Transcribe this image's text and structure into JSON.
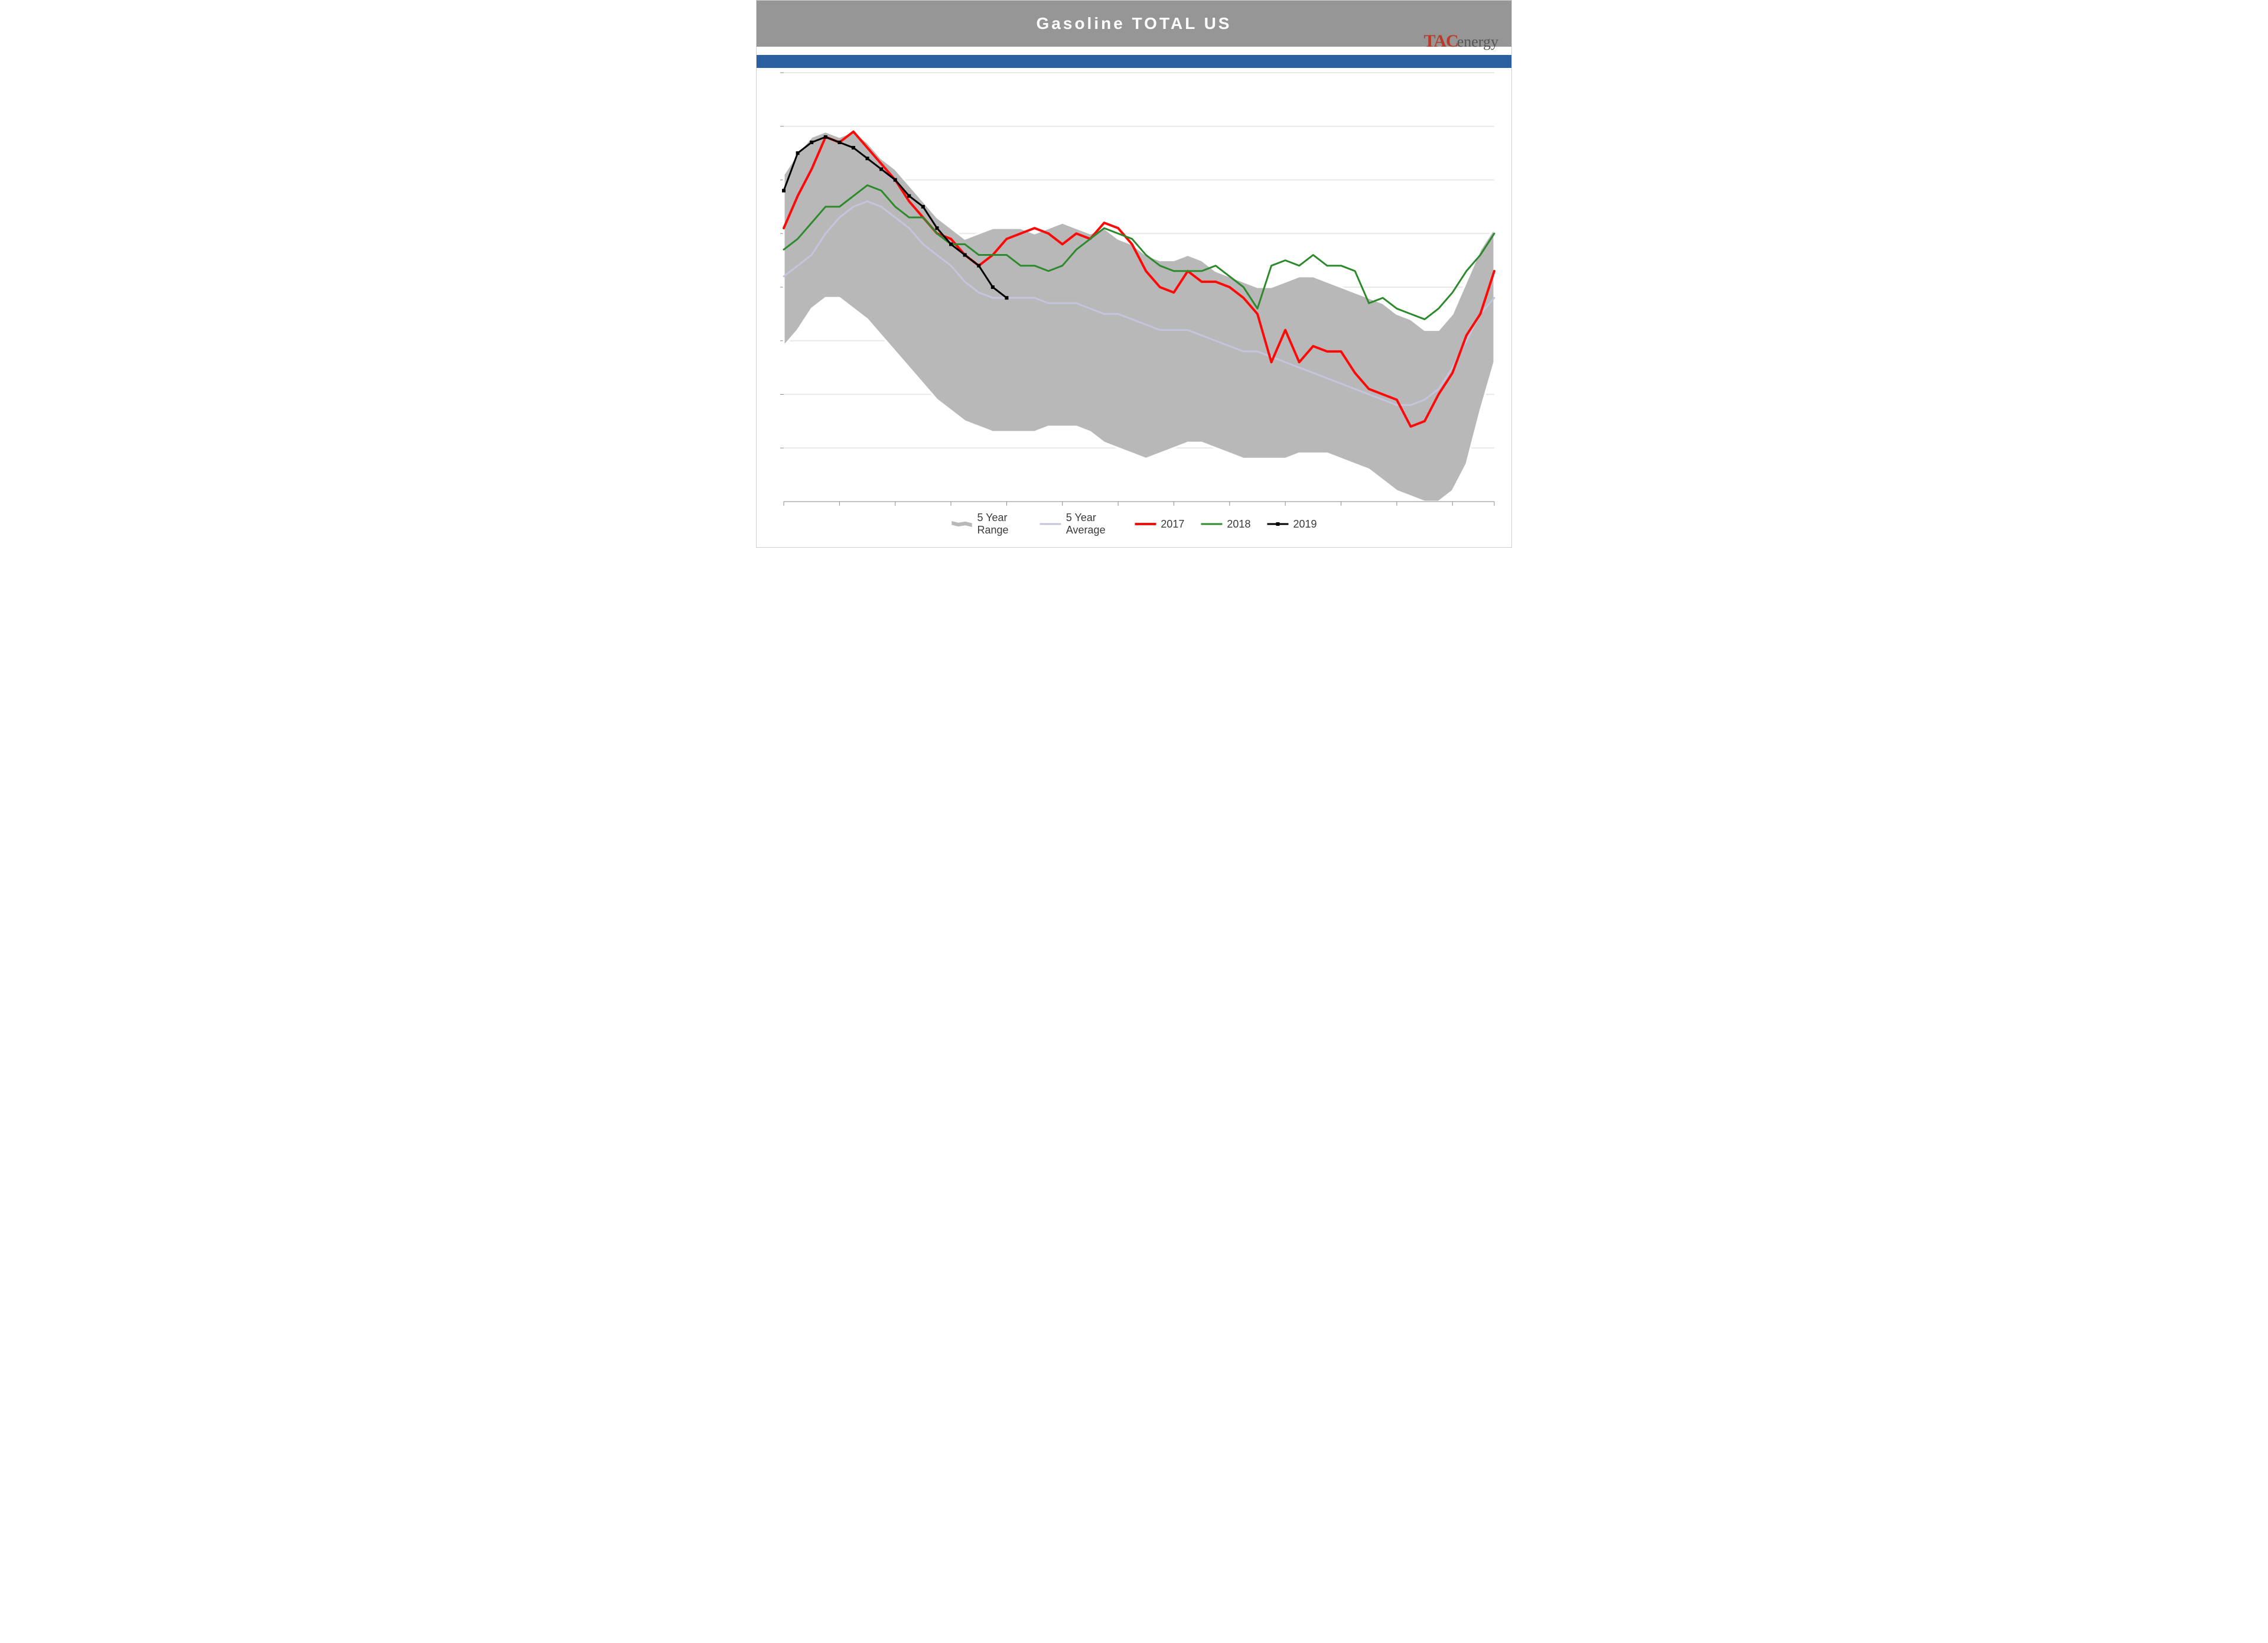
{
  "chart": {
    "type": "line-area",
    "title": "Gasoline TOTAL US",
    "title_fontsize": 28,
    "title_color": "#ffffff",
    "title_band_color": "#969696",
    "blue_band_color": "#2a5fa0",
    "background_color": "#ffffff",
    "chart_border_color": "#d0d0d0",
    "plot_background": "#ffffff",
    "grid_color": "#e8e8e8",
    "grid_line_width": 2,
    "ylim": [
      190,
      270
    ],
    "ytick_step": 10,
    "yticks": [
      190,
      200,
      210,
      220,
      230,
      240,
      250,
      260,
      270
    ],
    "xlim": [
      1,
      52
    ],
    "xticks": [
      1,
      5,
      9,
      13,
      17,
      21,
      25,
      29,
      33,
      37,
      41,
      45,
      49,
      52
    ],
    "x_axis_shows_tick_marks_only": true,
    "axis_tick_color": "#8a8a8a",
    "axis_baseline_color": "#8a8a8a",
    "weeks": [
      1,
      2,
      3,
      4,
      5,
      6,
      7,
      8,
      9,
      10,
      11,
      12,
      13,
      14,
      15,
      16,
      17,
      18,
      19,
      20,
      21,
      22,
      23,
      24,
      25,
      26,
      27,
      28,
      29,
      30,
      31,
      32,
      33,
      34,
      35,
      36,
      37,
      38,
      39,
      40,
      41,
      42,
      43,
      44,
      45,
      46,
      47,
      48,
      49,
      50,
      51,
      52
    ],
    "range_upper": [
      251,
      255,
      258,
      259,
      258,
      259,
      257,
      254,
      252,
      249,
      246,
      243,
      241,
      239,
      240,
      241,
      241,
      241,
      240,
      241,
      242,
      241,
      240,
      241,
      239,
      238,
      236,
      235,
      235,
      236,
      235,
      233,
      232,
      231,
      230,
      230,
      231,
      232,
      232,
      231,
      230,
      229,
      228,
      227,
      225,
      224,
      222,
      222,
      225,
      231,
      237,
      241
    ],
    "range_lower": [
      219,
      222,
      226,
      228,
      228,
      226,
      224,
      221,
      218,
      215,
      212,
      209,
      207,
      205,
      204,
      203,
      203,
      203,
      203,
      204,
      204,
      204,
      203,
      201,
      200,
      199,
      198,
      199,
      200,
      201,
      201,
      200,
      199,
      198,
      198,
      198,
      198,
      199,
      199,
      199,
      198,
      197,
      196,
      194,
      192,
      191,
      190,
      190,
      192,
      197,
      207,
      216
    ],
    "avg": [
      232,
      234,
      236,
      240,
      243,
      245,
      246,
      245,
      243,
      241,
      238,
      236,
      234,
      231,
      229,
      228,
      228,
      228,
      228,
      227,
      227,
      227,
      226,
      225,
      225,
      224,
      223,
      222,
      222,
      222,
      221,
      220,
      219,
      218,
      218,
      217,
      216,
      215,
      214,
      213,
      212,
      211,
      210,
      209,
      208,
      208,
      209,
      211,
      215,
      220,
      225,
      228
    ],
    "s2017": [
      241,
      247,
      252,
      258,
      257,
      259,
      256,
      253,
      250,
      246,
      243,
      240,
      239,
      236,
      234,
      236,
      239,
      240,
      241,
      240,
      238,
      240,
      239,
      242,
      241,
      238,
      233,
      230,
      229,
      233,
      231,
      231,
      230,
      228,
      225,
      216,
      222,
      216,
      219,
      218,
      218,
      214,
      211,
      210,
      209,
      204,
      205,
      210,
      214,
      221,
      225,
      233
    ],
    "s2018": [
      237,
      239,
      242,
      245,
      245,
      247,
      249,
      248,
      245,
      243,
      243,
      240,
      238,
      238,
      236,
      236,
      236,
      234,
      234,
      233,
      234,
      237,
      239,
      241,
      240,
      239,
      236,
      234,
      233,
      233,
      233,
      234,
      232,
      230,
      226,
      234,
      235,
      234,
      236,
      234,
      234,
      233,
      227,
      228,
      226,
      225,
      224,
      226,
      229,
      233,
      236,
      240
    ],
    "s2019": [
      248,
      255,
      257,
      258,
      257,
      256,
      254,
      252,
      250,
      247,
      245,
      241,
      238,
      236,
      234,
      230,
      228
    ],
    "legend": [
      {
        "key": "range",
        "label": "5 Year Range",
        "type": "area",
        "fill": "#b8b8b8",
        "stroke": "#ffffff",
        "stroke_width": 3
      },
      {
        "key": "avg",
        "label": "5 Year Average",
        "type": "line",
        "color": "#c4c4dc",
        "width": 3
      },
      {
        "key": "s2017",
        "label": "2017",
        "type": "line",
        "color": "#ff0808",
        "width": 4
      },
      {
        "key": "s2018",
        "label": "2018",
        "type": "line",
        "color": "#2c8a2c",
        "width": 3
      },
      {
        "key": "s2019",
        "label": "2019",
        "type": "line-marker",
        "color": "#000000",
        "width": 3,
        "marker": "square",
        "marker_size": 6
      }
    ],
    "legend_fontsize": 18,
    "legend_text_color": "#3a3a3a",
    "logo_color_primary": "#b83a2a",
    "logo_color_secondary": "#555555",
    "logo_primary": "TAC",
    "logo_secondary": "energy"
  }
}
